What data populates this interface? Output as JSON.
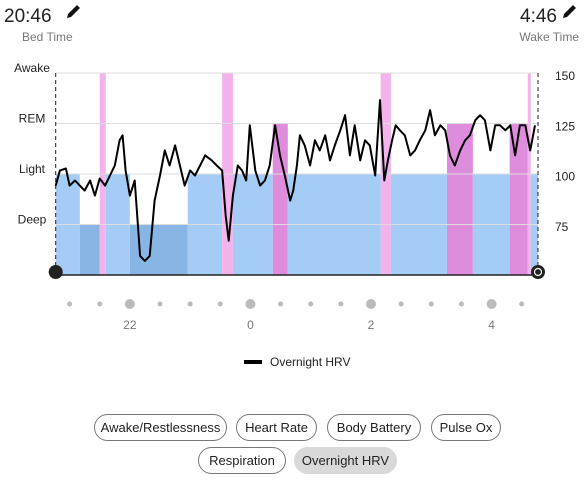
{
  "header": {
    "bed_time": "20:46",
    "bed_label": "Bed Time",
    "wake_time": "4:46",
    "wake_label": "Wake Time"
  },
  "chart_data": {
    "type": "sleep-hrv",
    "xlim": [
      20.77,
      28.77
    ],
    "xticks": [
      22,
      {
        "value": 24,
        "label": "0"
      },
      {
        "value": 26,
        "label": "2"
      },
      {
        "value": 28,
        "label": "4"
      }
    ],
    "ylim": [
      0,
      4
    ],
    "yticks": [
      {
        "value": 1,
        "label": "Deep"
      },
      {
        "value": 2,
        "label": "Light"
      },
      {
        "value": 3,
        "label": "REM"
      },
      {
        "value": 4,
        "label": "Awake"
      }
    ],
    "stage_colors": [
      "#88b5e4",
      "#a5ccf5",
      "#de8ddc",
      "#f2b3ec"
    ],
    "stages": [
      {
        "start": 20.77,
        "end": 21.17,
        "stage": 2
      },
      {
        "start": 21.17,
        "end": 21.5,
        "stage": 1
      },
      {
        "start": 21.5,
        "end": 21.6,
        "stage": 4
      },
      {
        "start": 21.6,
        "end": 22.0,
        "stage": 2
      },
      {
        "start": 22.0,
        "end": 22.96,
        "stage": 1
      },
      {
        "start": 22.96,
        "end": 23.53,
        "stage": 2
      },
      {
        "start": 23.53,
        "end": 23.71,
        "stage": 4
      },
      {
        "start": 23.71,
        "end": 24.37,
        "stage": 2
      },
      {
        "start": 24.37,
        "end": 24.62,
        "stage": 3
      },
      {
        "start": 24.62,
        "end": 26.16,
        "stage": 2
      },
      {
        "start": 26.16,
        "end": 26.33,
        "stage": 4
      },
      {
        "start": 26.33,
        "end": 27.26,
        "stage": 2
      },
      {
        "start": 27.26,
        "end": 27.69,
        "stage": 3
      },
      {
        "start": 27.69,
        "end": 28.3,
        "stage": 2
      },
      {
        "start": 28.3,
        "end": 28.6,
        "stage": 3
      },
      {
        "start": 28.6,
        "end": 28.65,
        "stage": 4
      },
      {
        "start": 28.65,
        "end": 28.77,
        "stage": 2
      }
    ],
    "y2lim": [
      51.5,
      152
    ],
    "y2ticks": [
      75,
      100,
      125,
      150
    ],
    "grid": true,
    "series": [
      {
        "name": "Overnight HRV",
        "color": "#000000",
        "axis": "y2",
        "x": [
          20.77,
          20.84,
          20.94,
          21.0,
          21.09,
          21.17,
          21.25,
          21.34,
          21.42,
          21.5,
          21.59,
          21.67,
          21.75,
          21.83,
          21.88,
          21.93,
          22.0,
          22.08,
          22.17,
          22.25,
          22.33,
          22.41,
          22.5,
          22.58,
          22.66,
          22.75,
          22.83,
          22.91,
          23.0,
          23.08,
          23.25,
          23.36,
          23.44,
          23.53,
          23.59,
          23.64,
          23.71,
          23.79,
          23.86,
          23.93,
          23.99,
          24.08,
          24.16,
          24.24,
          24.32,
          24.41,
          24.49,
          24.57,
          24.66,
          24.71,
          24.77,
          24.82,
          24.9,
          24.99,
          25.07,
          25.15,
          25.24,
          25.32,
          25.4,
          25.49,
          25.57,
          25.65,
          25.73,
          25.82,
          25.9,
          25.98,
          26.07,
          26.15,
          26.22,
          26.28,
          26.35,
          26.41,
          26.48,
          26.56,
          26.65,
          26.73,
          26.81,
          26.9,
          26.98,
          27.06,
          27.15,
          27.23,
          27.31,
          27.39,
          27.48,
          27.56,
          27.64,
          27.73,
          27.81,
          27.89,
          27.98,
          28.06,
          28.14,
          28.23,
          28.31,
          28.39,
          28.47,
          28.56,
          28.64,
          28.72
        ],
        "values": [
          96,
          103.5,
          104.5,
          96,
          98.5,
          96,
          93.5,
          98.5,
          91,
          99.5,
          96,
          101,
          106,
          118.5,
          121,
          103.5,
          91,
          98.5,
          61,
          58.5,
          61,
          88.5,
          101,
          113.5,
          106,
          116,
          106,
          96,
          103.5,
          101,
          111,
          108.5,
          106,
          103.5,
          81,
          68.5,
          91,
          106,
          103.5,
          98.5,
          126,
          103.5,
          96,
          98.5,
          106,
          126,
          111,
          101,
          88.5,
          93.5,
          106,
          121,
          116,
          106,
          118.5,
          113.5,
          121,
          108.5,
          116,
          123.5,
          131,
          111,
          126,
          108.5,
          118.5,
          116,
          101,
          138.5,
          98.5,
          108.5,
          118.5,
          126,
          123.5,
          121,
          111,
          113.5,
          118.5,
          123.5,
          133.5,
          121,
          126,
          123.5,
          111,
          106,
          113.5,
          118.5,
          121,
          128.5,
          131,
          128.5,
          113.5,
          126,
          126,
          123.5,
          126,
          111,
          126,
          126,
          113.5,
          126
        ]
      }
    ]
  },
  "buttons": [
    {
      "label": "Awake/Restlessness",
      "selected": false
    },
    {
      "label": "Heart Rate",
      "selected": false
    },
    {
      "label": "Body Battery",
      "selected": false
    },
    {
      "label": "Pulse Ox",
      "selected": false
    },
    {
      "label": "Respiration",
      "selected": false
    },
    {
      "label": "Overnight HRV",
      "selected": true
    }
  ]
}
